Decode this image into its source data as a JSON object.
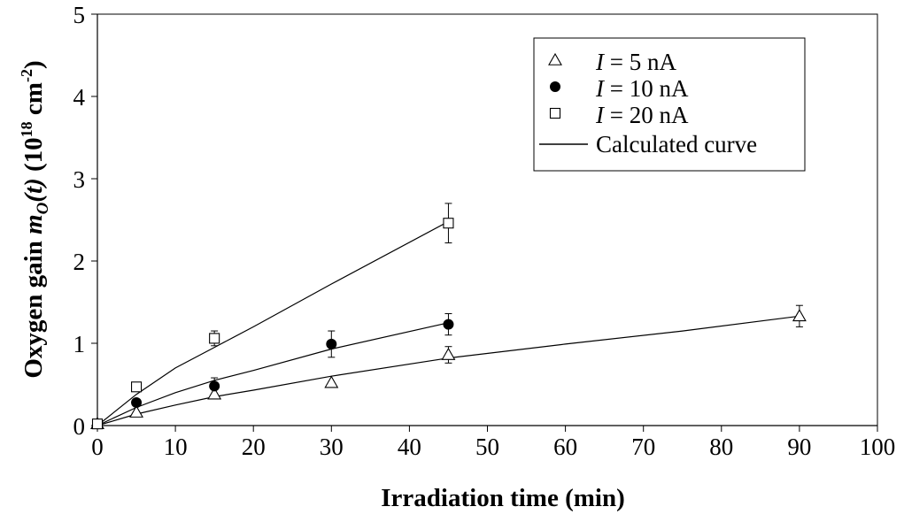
{
  "chart_data": {
    "type": "scatter",
    "xlabel": "Irradiation time (min)",
    "ylabel": {
      "prefix": "Oxygen gain ",
      "symbol": "m",
      "subscript": "O",
      "arg": "(t)",
      "unit_open": " (10",
      "unit_exp": "18",
      "unit_mid": " cm",
      "unit_exp2": "-2",
      "unit_close": ")"
    },
    "xlim": [
      0,
      100
    ],
    "ylim": [
      0,
      5
    ],
    "x_ticks": [
      "0",
      "10",
      "20",
      "30",
      "40",
      "50",
      "60",
      "70",
      "80",
      "90",
      "100"
    ],
    "y_ticks": [
      "0",
      "1",
      "2",
      "3",
      "4",
      "5"
    ],
    "grid": false,
    "legend_position": "top-right",
    "series": [
      {
        "label_var": "I",
        "label_rest": " = 5 nA",
        "marker": "triangle",
        "points": [
          {
            "x": 0,
            "y": 0.02,
            "err": 0
          },
          {
            "x": 5,
            "y": 0.16,
            "err": 0
          },
          {
            "x": 15,
            "y": 0.38,
            "err": 0
          },
          {
            "x": 30,
            "y": 0.52,
            "err": 0
          },
          {
            "x": 45,
            "y": 0.86,
            "err": 0.1
          },
          {
            "x": 90,
            "y": 1.33,
            "err": 0.13
          }
        ]
      },
      {
        "label_var": "I",
        "label_rest": " = 10 nA",
        "marker": "circle",
        "points": [
          {
            "x": 0,
            "y": 0.02,
            "err": 0
          },
          {
            "x": 5,
            "y": 0.28,
            "err": 0
          },
          {
            "x": 15,
            "y": 0.48,
            "err": 0.1
          },
          {
            "x": 30,
            "y": 0.99,
            "err": 0.16
          },
          {
            "x": 45,
            "y": 1.23,
            "err": 0.13
          }
        ]
      },
      {
        "label_var": "I",
        "label_rest": " = 20 nA",
        "marker": "square",
        "points": [
          {
            "x": 0,
            "y": 0.02,
            "err": 0
          },
          {
            "x": 5,
            "y": 0.47,
            "err": 0
          },
          {
            "x": 15,
            "y": 1.06,
            "err": 0.09
          },
          {
            "x": 45,
            "y": 2.46,
            "err": 0.24
          }
        ]
      }
    ],
    "calculated_curves": {
      "legend_label": "Calculated curve",
      "curves": [
        {
          "for": "I = 5 nA",
          "points": [
            [
              0,
              0
            ],
            [
              5,
              0.14
            ],
            [
              10,
              0.25
            ],
            [
              15,
              0.35
            ],
            [
              20,
              0.43
            ],
            [
              30,
              0.6
            ],
            [
              45,
              0.82
            ],
            [
              60,
              0.99
            ],
            [
              75,
              1.15
            ],
            [
              90,
              1.33
            ]
          ]
        },
        {
          "for": "I = 10 nA",
          "points": [
            [
              0,
              0
            ],
            [
              5,
              0.22
            ],
            [
              10,
              0.4
            ],
            [
              15,
              0.55
            ],
            [
              20,
              0.67
            ],
            [
              30,
              0.93
            ],
            [
              45,
              1.25
            ]
          ]
        },
        {
          "for": "I = 20 nA",
          "points": [
            [
              0,
              0
            ],
            [
              5,
              0.38
            ],
            [
              10,
              0.7
            ],
            [
              15,
              0.95
            ],
            [
              20,
              1.2
            ],
            [
              30,
              1.72
            ],
            [
              45,
              2.48
            ]
          ]
        }
      ]
    }
  }
}
